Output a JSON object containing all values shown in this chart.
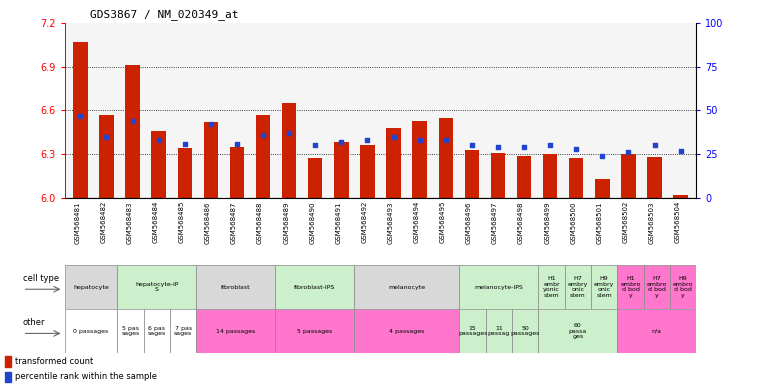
{
  "title": "GDS3867 / NM_020349_at",
  "samples": [
    "GSM568481",
    "GSM568482",
    "GSM568483",
    "GSM568484",
    "GSM568485",
    "GSM568486",
    "GSM568487",
    "GSM568488",
    "GSM568489",
    "GSM568490",
    "GSM568491",
    "GSM568492",
    "GSM568493",
    "GSM568494",
    "GSM568495",
    "GSM568496",
    "GSM568497",
    "GSM568498",
    "GSM568499",
    "GSM568500",
    "GSM568501",
    "GSM568502",
    "GSM568503",
    "GSM568504"
  ],
  "red_values": [
    7.07,
    6.57,
    6.91,
    6.46,
    6.34,
    6.52,
    6.35,
    6.57,
    6.65,
    6.27,
    6.38,
    6.36,
    6.48,
    6.53,
    6.55,
    6.33,
    6.31,
    6.29,
    6.3,
    6.27,
    6.13,
    6.3,
    6.28,
    6.02
  ],
  "blue_values": [
    47,
    35,
    44,
    33,
    31,
    42,
    31,
    36,
    37,
    30,
    32,
    33,
    35,
    33,
    33,
    30,
    29,
    29,
    30,
    28,
    24,
    26,
    30,
    27
  ],
  "ylim_left": [
    6.0,
    7.2
  ],
  "ylim_right": [
    0,
    100
  ],
  "yticks_left": [
    6.0,
    6.3,
    6.6,
    6.9,
    7.2
  ],
  "yticks_right": [
    0,
    25,
    50,
    75,
    100
  ],
  "bar_color": "#cc2200",
  "dot_color": "#2244cc",
  "bg_color": "#f5f5f5",
  "cell_type_groups": [
    {
      "label": "hepatocyte",
      "start": 0,
      "end": 2,
      "color": "#d8d8d8"
    },
    {
      "label": "hepatocyte-iP\nS",
      "start": 2,
      "end": 5,
      "color": "#ccf0cc"
    },
    {
      "label": "fibroblast",
      "start": 5,
      "end": 8,
      "color": "#d8d8d8"
    },
    {
      "label": "fibroblast-IPS",
      "start": 8,
      "end": 11,
      "color": "#ccf0cc"
    },
    {
      "label": "melanocyte",
      "start": 11,
      "end": 15,
      "color": "#d8d8d8"
    },
    {
      "label": "melanocyte-IPS",
      "start": 15,
      "end": 18,
      "color": "#ccf0cc"
    },
    {
      "label": "H1\nembr\nyonic\nstem",
      "start": 18,
      "end": 19,
      "color": "#ccf0cc"
    },
    {
      "label": "H7\nembry\nonic\nstem",
      "start": 19,
      "end": 20,
      "color": "#ccf0cc"
    },
    {
      "label": "H9\nembry\nonic\nstem",
      "start": 20,
      "end": 21,
      "color": "#ccf0cc"
    },
    {
      "label": "H1\nembro\nd bod\ny",
      "start": 21,
      "end": 22,
      "color": "#ff77cc"
    },
    {
      "label": "H7\nembro\nd bod\ny",
      "start": 22,
      "end": 23,
      "color": "#ff77cc"
    },
    {
      "label": "H9\nembro\nd bod\ny",
      "start": 23,
      "end": 24,
      "color": "#ff77cc"
    }
  ],
  "other_groups": [
    {
      "label": "0 passages",
      "start": 0,
      "end": 2,
      "color": "#ffffff"
    },
    {
      "label": "5 pas\nsages",
      "start": 2,
      "end": 3,
      "color": "#ffffff"
    },
    {
      "label": "6 pas\nsages",
      "start": 3,
      "end": 4,
      "color": "#ffffff"
    },
    {
      "label": "7 pas\nsages",
      "start": 4,
      "end": 5,
      "color": "#ffffff"
    },
    {
      "label": "14 passages",
      "start": 5,
      "end": 8,
      "color": "#ff77cc"
    },
    {
      "label": "5 passages",
      "start": 8,
      "end": 11,
      "color": "#ff77cc"
    },
    {
      "label": "4 passages",
      "start": 11,
      "end": 15,
      "color": "#ff77cc"
    },
    {
      "label": "15\npassages",
      "start": 15,
      "end": 16,
      "color": "#ccf0cc"
    },
    {
      "label": "11\npassag",
      "start": 16,
      "end": 17,
      "color": "#ccf0cc"
    },
    {
      "label": "50\npassages",
      "start": 17,
      "end": 18,
      "color": "#ccf0cc"
    },
    {
      "label": "60\npassa\nges",
      "start": 18,
      "end": 21,
      "color": "#ccf0cc"
    },
    {
      "label": "n/a",
      "start": 21,
      "end": 24,
      "color": "#ff77cc"
    }
  ]
}
